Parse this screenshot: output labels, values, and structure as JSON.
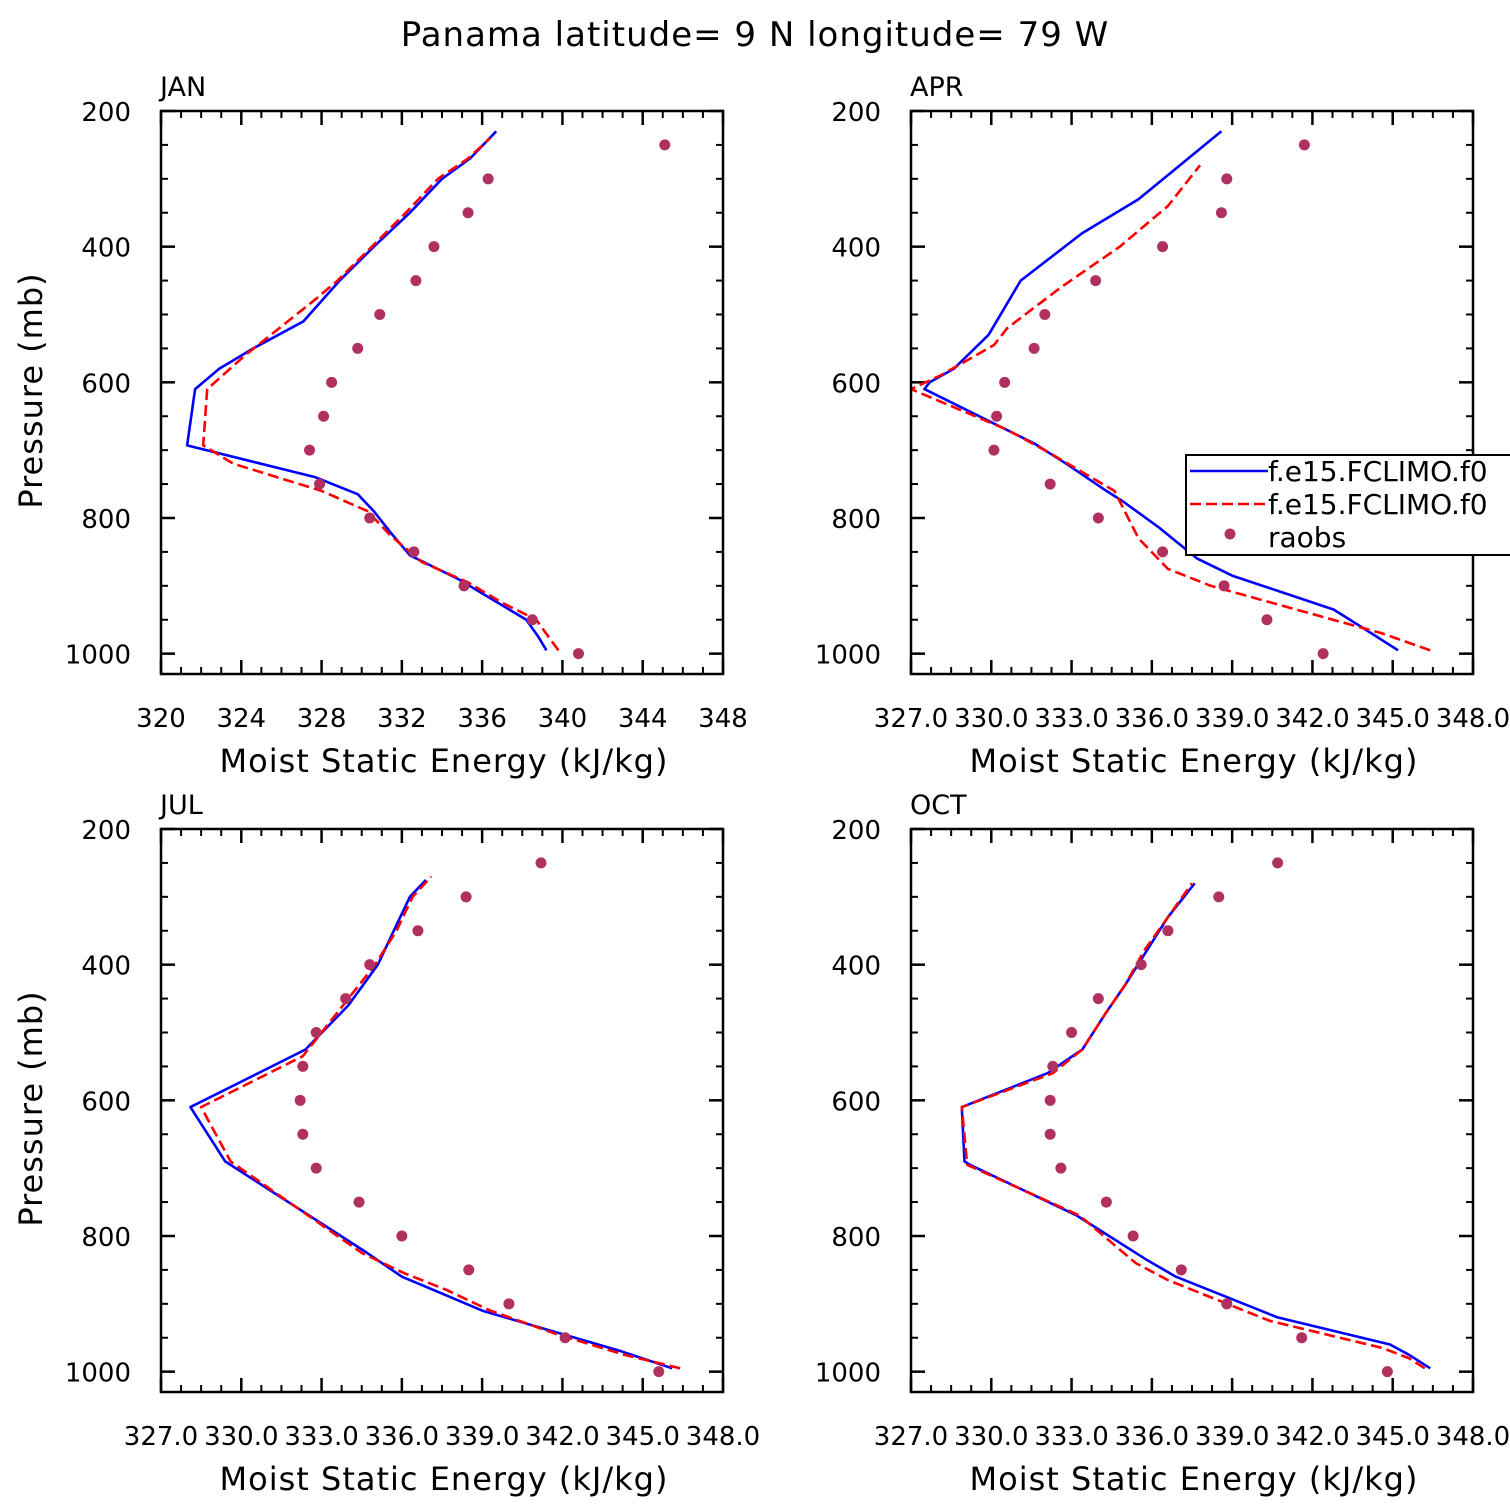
{
  "figure": {
    "title": "Panama  latitude= 9 N longitude= 79 W"
  },
  "legend": {
    "entries": [
      {
        "label": "f.e15.FCLIMO.f0",
        "style": "solid",
        "color": "#0000ff"
      },
      {
        "label": "f.e15.FCLIMO.f0",
        "style": "dashed",
        "color": "#ff0000"
      },
      {
        "label": "raobs",
        "style": "marker",
        "color": "#b03060"
      }
    ],
    "location": "right of APR panel"
  },
  "colors": {
    "model1": "#0000ff",
    "model2": "#ff0000",
    "raobs": "#b03060"
  },
  "chart_data": [
    {
      "type": "line",
      "title": "JAN",
      "xlabel": "Moist Static Energy (kJ/kg)",
      "ylabel": "Pressure (mb)",
      "xlim": [
        320,
        348
      ],
      "ylim": [
        1000,
        200
      ],
      "xticks": [
        320,
        324,
        328,
        332,
        336,
        340,
        344,
        348
      ],
      "xtick_labels": [
        "320",
        "324",
        "328",
        "332",
        "336",
        "340",
        "344",
        "348"
      ],
      "yticks": [
        200,
        400,
        600,
        800,
        1000
      ],
      "ytick_labels": [
        "200",
        "400",
        "600",
        "800",
        "1000"
      ],
      "series": [
        {
          "name": "f.e15.FCLIMO.f0",
          "style": "solid",
          "x": [
            339.2,
            338.8,
            338.2,
            336.5,
            334.8,
            332.4,
            331.4,
            330.6,
            329.8,
            327.7,
            321.3,
            321.7,
            322.9,
            324.6,
            327.1,
            328.9,
            330.6,
            332.4,
            334.0,
            335.4,
            336.7
          ],
          "y": [
            995,
            975,
            950,
            920,
            890,
            855,
            820,
            790,
            765,
            740,
            693,
            610,
            580,
            550,
            510,
            450,
            400,
            350,
            300,
            270,
            230
          ]
        },
        {
          "name": "f.e15.FCLIMO.f0",
          "style": "dashed",
          "x": [
            339.8,
            339.3,
            338.7,
            337.0,
            335.3,
            333.0,
            331.4,
            330.3,
            328.0,
            323.6,
            322.1,
            322.3,
            324.2,
            327.6,
            328.8,
            330.5,
            332.2,
            333.8,
            335.3,
            336.4
          ],
          "y": [
            995,
            975,
            950,
            925,
            895,
            865,
            825,
            790,
            760,
            720,
            693,
            610,
            560,
            480,
            450,
            400,
            350,
            300,
            270,
            240
          ]
        }
      ],
      "raobs": {
        "x": [
          340.8,
          338.5,
          335.1,
          332.6,
          330.4,
          327.9,
          327.4,
          328.1,
          328.5,
          329.8,
          330.9,
          332.7,
          333.6,
          335.3,
          336.3,
          345.1
        ],
        "y": [
          1000,
          950,
          900,
          850,
          800,
          750,
          700,
          650,
          600,
          550,
          500,
          450,
          400,
          350,
          300,
          250
        ]
      }
    },
    {
      "type": "line",
      "title": "APR",
      "xlabel": "Moist Static Energy (kJ/kg)",
      "ylabel": "",
      "xlim": [
        327.0,
        348.0
      ],
      "ylim": [
        1000,
        200
      ],
      "xticks": [
        327,
        330,
        333,
        336,
        339,
        342,
        345,
        348
      ],
      "xtick_labels": [
        "327.0",
        "330.0",
        "333.0",
        "336.0",
        "339.0",
        "342.0",
        "345.0",
        "348.0"
      ],
      "yticks": [
        200,
        400,
        600,
        800,
        1000
      ],
      "ytick_labels": [
        "200",
        "400",
        "600",
        "800",
        "1000"
      ],
      "series": [
        {
          "name": "f.e15.FCLIMO.f0",
          "style": "solid",
          "x": [
            345.2,
            344.0,
            342.8,
            339.0,
            337.7,
            336.3,
            334.9,
            334.3,
            332.8,
            331.6,
            327.5,
            327.7,
            328.6,
            329.9,
            331.1,
            333.4,
            335.5,
            338.6
          ],
          "y": [
            995,
            965,
            935,
            885,
            860,
            815,
            775,
            760,
            720,
            690,
            610,
            600,
            580,
            530,
            450,
            380,
            330,
            230
          ]
        },
        {
          "name": "f.e15.FCLIMO.f0",
          "style": "dashed",
          "x": [
            346.4,
            344.6,
            342.3,
            338.2,
            336.6,
            335.5,
            334.6,
            332.0,
            330.6,
            327.0,
            328.1,
            330.1,
            330.6,
            331.6,
            332.6,
            334.8,
            336.6,
            337.8
          ],
          "y": [
            995,
            970,
            945,
            900,
            875,
            830,
            760,
            700,
            670,
            610,
            590,
            545,
            520,
            490,
            460,
            400,
            340,
            280
          ]
        }
      ],
      "raobs": {
        "x": [
          342.4,
          340.3,
          338.7,
          336.4,
          334.0,
          332.2,
          330.1,
          330.2,
          330.5,
          331.6,
          332.0,
          333.9,
          336.4,
          338.6,
          338.8,
          341.7
        ],
        "y": [
          1000,
          950,
          900,
          850,
          800,
          750,
          700,
          650,
          600,
          550,
          500,
          450,
          400,
          350,
          300,
          250
        ]
      }
    },
    {
      "type": "line",
      "title": "JUL",
      "xlabel": "Moist Static Energy (kJ/kg)",
      "ylabel": "Pressure (mb)",
      "xlim": [
        327.0,
        348.0
      ],
      "ylim": [
        1000,
        200
      ],
      "xticks": [
        327,
        330,
        333,
        336,
        339,
        342,
        345,
        348
      ],
      "xtick_labels": [
        "327.0",
        "330.0",
        "333.0",
        "336.0",
        "339.0",
        "342.0",
        "345.0",
        "348.0"
      ],
      "yticks": [
        200,
        400,
        600,
        800,
        1000
      ],
      "ytick_labels": [
        "200",
        "400",
        "600",
        "800",
        "1000"
      ],
      "series": [
        {
          "name": "f.e15.FCLIMO.f0",
          "style": "solid",
          "x": [
            346.1,
            344.2,
            341.6,
            339.0,
            337.5,
            336.0,
            334.7,
            329.4,
            328.1,
            332.4,
            334.0,
            335.1,
            335.7,
            336.3,
            336.9
          ],
          "y": [
            995,
            970,
            940,
            910,
            885,
            860,
            825,
            690,
            610,
            525,
            460,
            400,
            350,
            300,
            275
          ]
        },
        {
          "name": "f.e15.FCLIMO.f0",
          "style": "dashed",
          "x": [
            346.4,
            344.3,
            341.8,
            339.3,
            337.7,
            336.1,
            334.5,
            329.6,
            328.5,
            332.3,
            333.8,
            335.0,
            335.8,
            336.4,
            337.1
          ],
          "y": [
            995,
            975,
            945,
            910,
            880,
            855,
            825,
            690,
            610,
            535,
            460,
            400,
            350,
            300,
            270
          ]
        }
      ],
      "raobs": {
        "x": [
          345.6,
          342.1,
          340.0,
          338.5,
          336.0,
          334.4,
          332.8,
          332.3,
          332.2,
          332.3,
          332.8,
          333.9,
          334.8,
          336.6,
          338.4,
          341.2
        ],
        "y": [
          1000,
          950,
          900,
          850,
          800,
          750,
          700,
          650,
          600,
          550,
          500,
          450,
          400,
          350,
          300,
          250
        ]
      }
    },
    {
      "type": "line",
      "title": "OCT",
      "xlabel": "Moist Static Energy (kJ/kg)",
      "ylabel": "",
      "xlim": [
        327.0,
        348.0
      ],
      "ylim": [
        1000,
        200
      ],
      "xticks": [
        327,
        330,
        333,
        336,
        339,
        342,
        345,
        348
      ],
      "xtick_labels": [
        "327.0",
        "330.0",
        "333.0",
        "336.0",
        "339.0",
        "342.0",
        "345.0",
        "348.0"
      ],
      "yticks": [
        200,
        400,
        600,
        800,
        1000
      ],
      "ytick_labels": [
        "200",
        "400",
        "600",
        "800",
        "1000"
      ],
      "series": [
        {
          "name": "f.e15.FCLIMO.f0",
          "style": "solid",
          "x": [
            346.4,
            345.6,
            344.9,
            340.7,
            336.9,
            335.8,
            333.2,
            329.2,
            329.0,
            328.9,
            332.1,
            333.4,
            334.3,
            335.0,
            335.8,
            336.6,
            337.6
          ],
          "y": [
            995,
            975,
            960,
            920,
            860,
            835,
            770,
            695,
            690,
            610,
            560,
            525,
            470,
            430,
            380,
            330,
            280
          ]
        },
        {
          "name": "f.e15.FCLIMO.f0",
          "style": "dashed",
          "x": [
            346.2,
            345.6,
            344.6,
            340.4,
            336.6,
            335.4,
            333.3,
            329.1,
            328.9,
            332.3,
            333.4,
            334.3,
            335.0,
            335.7,
            336.6,
            337.5
          ],
          "y": [
            995,
            980,
            965,
            925,
            865,
            840,
            770,
            695,
            610,
            560,
            525,
            470,
            430,
            380,
            330,
            280
          ]
        }
      ],
      "raobs": {
        "x": [
          344.8,
          341.6,
          338.8,
          337.1,
          335.3,
          334.3,
          332.6,
          332.2,
          332.2,
          332.3,
          333.0,
          334.0,
          335.6,
          336.6,
          338.5,
          340.7
        ],
        "y": [
          1000,
          950,
          900,
          850,
          800,
          750,
          700,
          650,
          600,
          550,
          500,
          450,
          400,
          350,
          300,
          250
        ]
      }
    }
  ]
}
